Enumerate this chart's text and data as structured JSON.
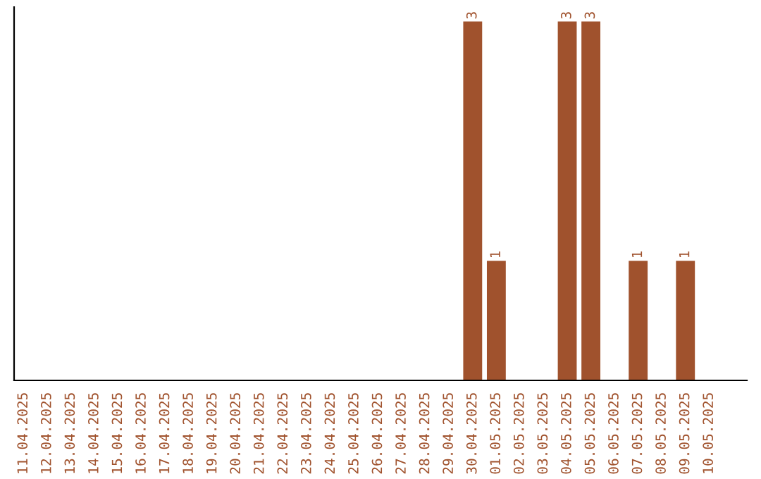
{
  "chart_data": {
    "type": "bar",
    "categories": [
      "11.04.2025",
      "12.04.2025",
      "13.04.2025",
      "14.04.2025",
      "15.04.2025",
      "16.04.2025",
      "17.04.2025",
      "18.04.2025",
      "19.04.2025",
      "20.04.2025",
      "21.04.2025",
      "22.04.2025",
      "23.04.2025",
      "24.04.2025",
      "25.04.2025",
      "26.04.2025",
      "27.04.2025",
      "28.04.2025",
      "29.04.2025",
      "30.04.2025",
      "01.05.2025",
      "02.05.2025",
      "03.05.2025",
      "04.05.2025",
      "05.05.2025",
      "06.05.2025",
      "07.05.2025",
      "08.05.2025",
      "09.05.2025",
      "10.05.2025"
    ],
    "values": [
      null,
      null,
      null,
      null,
      null,
      null,
      null,
      null,
      null,
      null,
      null,
      null,
      null,
      null,
      null,
      null,
      null,
      null,
      null,
      3,
      1,
      null,
      null,
      3,
      3,
      null,
      1,
      null,
      1,
      null
    ],
    "data_labels": true,
    "color": "#a0522d",
    "grid": false,
    "legend": false
  }
}
